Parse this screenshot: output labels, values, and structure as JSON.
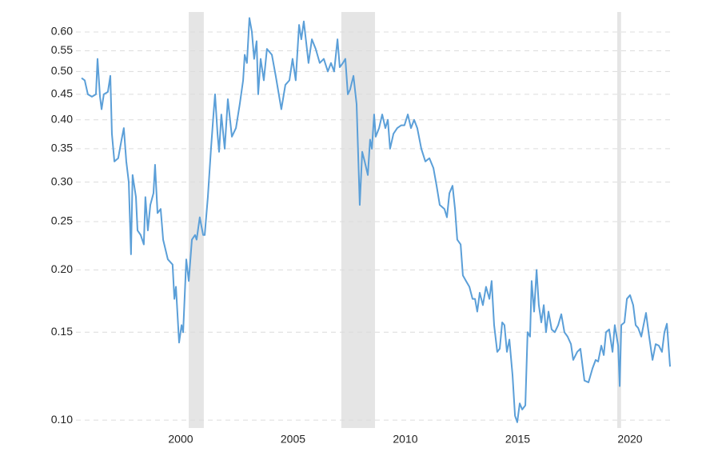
{
  "chart_data": {
    "type": "line",
    "log_y": true,
    "grid": true,
    "color": "#5b9fd8",
    "xlim": [
      1995.34,
      2021.85
    ],
    "ylim": [
      0.0964,
      0.658
    ],
    "xticks": [
      2000,
      2005,
      2010,
      2015,
      2020
    ],
    "yticks": [
      {
        "value": 0.1,
        "label": "0.10"
      },
      0.15,
      {
        "value": 0.2,
        "label": "0.20"
      },
      0.25,
      {
        "value": 0.3,
        "label": "0.30"
      },
      0.35,
      {
        "value": 0.4,
        "label": "0.40"
      },
      0.45,
      {
        "value": 0.5,
        "label": "0.50"
      },
      0.55,
      {
        "value": 0.6,
        "label": "0.60"
      }
    ],
    "recessions": [
      [
        2000.36,
        2001.03
      ],
      [
        2007.15,
        2008.65
      ],
      [
        2019.43,
        2019.6
      ]
    ],
    "x": [
      1995.59,
      1995.73,
      1995.87,
      1996.05,
      1996.23,
      1996.3,
      1996.41,
      1996.48,
      1996.58,
      1996.76,
      1996.87,
      1996.94,
      1997.05,
      1997.22,
      1997.37,
      1997.47,
      1997.58,
      1997.69,
      1997.79,
      1997.86,
      1998.01,
      1998.08,
      1998.22,
      1998.36,
      1998.43,
      1998.54,
      1998.65,
      1998.79,
      1998.86,
      1998.97,
      1999.11,
      1999.22,
      1999.43,
      1999.64,
      1999.72,
      1999.79,
      1999.93,
      2000.04,
      2000.11,
      2000.25,
      2000.36,
      2000.5,
      2000.64,
      2000.71,
      2000.85,
      2001.0,
      2001.07,
      2001.21,
      2001.35,
      2001.46,
      2001.53,
      2001.64,
      2001.71,
      2001.81,
      2001.96,
      2002.1,
      2002.28,
      2002.46,
      2002.63,
      2002.78,
      2002.85,
      2002.95,
      2003.06,
      2003.17,
      2003.27,
      2003.38,
      2003.45,
      2003.56,
      2003.7,
      2003.84,
      2004.06,
      2004.23,
      2004.48,
      2004.66,
      2004.84,
      2004.98,
      2005.12,
      2005.27,
      2005.37,
      2005.48,
      2005.59,
      2005.69,
      2005.84,
      2006.01,
      2006.19,
      2006.37,
      2006.55,
      2006.69,
      2006.83,
      2006.98,
      2007.08,
      2007.22,
      2007.33,
      2007.44,
      2007.54,
      2007.69,
      2007.83,
      2007.97,
      2008.08,
      2008.19,
      2008.33,
      2008.43,
      2008.51,
      2008.61,
      2008.68,
      2008.83,
      2008.97,
      2009.11,
      2009.22,
      2009.32,
      2009.47,
      2009.64,
      2009.82,
      2009.96,
      2010.11,
      2010.25,
      2010.39,
      2010.53,
      2010.71,
      2010.89,
      2011.07,
      2011.25,
      2011.39,
      2011.53,
      2011.74,
      2011.85,
      2011.96,
      2012.1,
      2012.21,
      2012.31,
      2012.46,
      2012.56,
      2012.7,
      2012.85,
      2012.99,
      2013.1,
      2013.2,
      2013.31,
      2013.45,
      2013.59,
      2013.74,
      2013.84,
      2013.95,
      2014.09,
      2014.2,
      2014.31,
      2014.41,
      2014.52,
      2014.63,
      2014.77,
      2014.88,
      2014.98,
      2015.09,
      2015.2,
      2015.34,
      2015.44,
      2015.55,
      2015.62,
      2015.73,
      2015.84,
      2015.94,
      2016.05,
      2016.16,
      2016.26,
      2016.37,
      2016.51,
      2016.65,
      2016.8,
      2016.94,
      2017.08,
      2017.22,
      2017.37,
      2017.47,
      2017.65,
      2017.79,
      2017.97,
      2018.15,
      2018.33,
      2018.47,
      2018.58,
      2018.72,
      2018.83,
      2018.93,
      2019.07,
      2019.22,
      2019.32,
      2019.47,
      2019.54,
      2019.61,
      2019.75,
      2019.86,
      2020.0,
      2020.14,
      2020.25,
      2020.36,
      2020.5,
      2020.6,
      2020.71,
      2020.85,
      2021.0,
      2021.14,
      2021.28,
      2021.42,
      2021.53,
      2021.64,
      2021.78
    ],
    "values": [
      0.485,
      0.48,
      0.45,
      0.445,
      0.45,
      0.53,
      0.445,
      0.42,
      0.45,
      0.455,
      0.49,
      0.375,
      0.33,
      0.335,
      0.365,
      0.385,
      0.33,
      0.3,
      0.215,
      0.31,
      0.28,
      0.24,
      0.235,
      0.225,
      0.28,
      0.24,
      0.27,
      0.285,
      0.325,
      0.26,
      0.265,
      0.23,
      0.21,
      0.205,
      0.175,
      0.185,
      0.143,
      0.155,
      0.15,
      0.21,
      0.19,
      0.23,
      0.235,
      0.23,
      0.255,
      0.235,
      0.235,
      0.28,
      0.35,
      0.41,
      0.45,
      0.375,
      0.345,
      0.41,
      0.35,
      0.44,
      0.37,
      0.385,
      0.43,
      0.48,
      0.54,
      0.52,
      0.64,
      0.6,
      0.53,
      0.575,
      0.45,
      0.53,
      0.48,
      0.555,
      0.54,
      0.49,
      0.42,
      0.47,
      0.48,
      0.53,
      0.48,
      0.62,
      0.58,
      0.63,
      0.57,
      0.52,
      0.58,
      0.555,
      0.52,
      0.53,
      0.5,
      0.52,
      0.5,
      0.58,
      0.51,
      0.52,
      0.53,
      0.45,
      0.46,
      0.49,
      0.43,
      0.27,
      0.345,
      0.33,
      0.31,
      0.365,
      0.35,
      0.41,
      0.37,
      0.385,
      0.41,
      0.385,
      0.4,
      0.35,
      0.375,
      0.385,
      0.39,
      0.39,
      0.41,
      0.385,
      0.4,
      0.385,
      0.35,
      0.33,
      0.335,
      0.32,
      0.295,
      0.27,
      0.265,
      0.255,
      0.285,
      0.295,
      0.265,
      0.23,
      0.225,
      0.195,
      0.19,
      0.185,
      0.175,
      0.175,
      0.165,
      0.18,
      0.17,
      0.185,
      0.175,
      0.19,
      0.155,
      0.137,
      0.139,
      0.157,
      0.155,
      0.137,
      0.145,
      0.123,
      0.102,
      0.099,
      0.108,
      0.105,
      0.107,
      0.15,
      0.147,
      0.19,
      0.165,
      0.2,
      0.17,
      0.157,
      0.17,
      0.15,
      0.165,
      0.152,
      0.15,
      0.155,
      0.163,
      0.15,
      0.147,
      0.142,
      0.132,
      0.137,
      0.139,
      0.12,
      0.119,
      0.127,
      0.132,
      0.131,
      0.141,
      0.135,
      0.15,
      0.152,
      0.137,
      0.155,
      0.141,
      0.117,
      0.155,
      0.157,
      0.175,
      0.178,
      0.17,
      0.155,
      0.153,
      0.147,
      0.155,
      0.164,
      0.147,
      0.132,
      0.142,
      0.141,
      0.137,
      0.15,
      0.156,
      0.128
    ]
  }
}
